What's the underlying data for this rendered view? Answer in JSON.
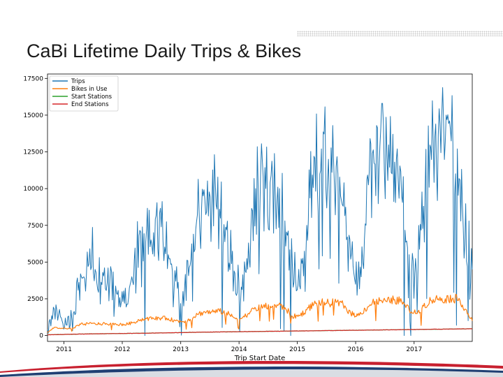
{
  "slide": {
    "title": "CaBi Lifetime Daily Trips & Bikes"
  },
  "colors": {
    "trips": "#1f77b4",
    "bikes": "#ff7f0e",
    "start": "#2ca02c",
    "end": "#d62728",
    "footer_navy": "#1f3f73",
    "footer_red": "#c8202f"
  },
  "chart_data": {
    "type": "line",
    "title": "",
    "xlabel": "Trip Start Date",
    "ylabel": "",
    "xlim": [
      "2010-09-20",
      "2017-12-31"
    ],
    "ylim": [
      -400,
      17800
    ],
    "x_ticks": [
      "2011",
      "2012",
      "2013",
      "2014",
      "2015",
      "2016",
      "2017"
    ],
    "y_ticks": [
      0,
      2500,
      5000,
      7500,
      10000,
      12500,
      15000,
      17500
    ],
    "y_tick_labels": [
      "0",
      "2500",
      "5000",
      "7500",
      "10000",
      "12500",
      "15000",
      "17500"
    ],
    "legend_position": "top-left",
    "grid": false,
    "series": [
      {
        "name": "Trips",
        "x": [
          "2010-09-20",
          "2010-11-01",
          "2010-12-15",
          "2011-01-20",
          "2011-03-01",
          "2011-04-15",
          "2011-06-01",
          "2011-07-15",
          "2011-09-01",
          "2011-10-15",
          "2011-12-01",
          "2012-01-15",
          "2012-03-01",
          "2012-04-15",
          "2012-06-01",
          "2012-07-15",
          "2012-09-01",
          "2012-10-15",
          "2012-12-01",
          "2013-01-15",
          "2013-03-01",
          "2013-04-15",
          "2013-06-01",
          "2013-07-15",
          "2013-09-01",
          "2013-10-15",
          "2013-12-01",
          "2014-01-15",
          "2014-03-01",
          "2014-04-15",
          "2014-06-01",
          "2014-07-15",
          "2014-09-01",
          "2014-10-15",
          "2014-12-01",
          "2015-01-15",
          "2015-03-01",
          "2015-04-15",
          "2015-06-01",
          "2015-07-15",
          "2015-09-01",
          "2015-10-15",
          "2015-12-01",
          "2016-01-15",
          "2016-03-01",
          "2016-04-15",
          "2016-06-01",
          "2016-07-15",
          "2016-09-01",
          "2016-10-15",
          "2016-12-01",
          "2017-01-15",
          "2017-03-01",
          "2017-04-15",
          "2017-06-01",
          "2017-07-15",
          "2017-09-01",
          "2017-10-15",
          "2017-12-31"
        ],
        "values": [
          400,
          1800,
          1200,
          700,
          1500,
          4200,
          4700,
          4500,
          4300,
          3700,
          2800,
          2200,
          4000,
          6800,
          7200,
          7000,
          7400,
          5500,
          3700,
          3000,
          4800,
          8200,
          9300,
          9000,
          8600,
          7200,
          4400,
          3300,
          6300,
          10000,
          10800,
          10400,
          10100,
          7800,
          4800,
          3400,
          7500,
          12200,
          12700,
          12000,
          11500,
          8800,
          5200,
          3800,
          7600,
          12400,
          12900,
          12300,
          11800,
          9500,
          5500,
          4300,
          8800,
          12800,
          13600,
          13200,
          13000,
          10600,
          4500
        ]
      },
      {
        "name": "Bikes in Use",
        "x": [
          "2010-09-20",
          "2010-11-01",
          "2010-12-15",
          "2011-01-20",
          "2011-03-01",
          "2011-04-15",
          "2011-06-01",
          "2011-07-15",
          "2011-09-01",
          "2011-10-15",
          "2011-12-01",
          "2012-01-15",
          "2012-03-01",
          "2012-04-15",
          "2012-06-01",
          "2012-07-15",
          "2012-09-01",
          "2012-10-15",
          "2012-12-01",
          "2013-01-15",
          "2013-03-01",
          "2013-04-15",
          "2013-06-01",
          "2013-07-15",
          "2013-09-01",
          "2013-10-15",
          "2013-12-01",
          "2014-01-15",
          "2014-03-01",
          "2014-04-15",
          "2014-06-01",
          "2014-07-15",
          "2014-09-01",
          "2014-10-15",
          "2014-12-01",
          "2015-01-15",
          "2015-03-01",
          "2015-04-15",
          "2015-06-01",
          "2015-07-15",
          "2015-09-01",
          "2015-10-15",
          "2015-12-01",
          "2016-01-15",
          "2016-03-01",
          "2016-04-15",
          "2016-06-01",
          "2016-07-15",
          "2016-09-01",
          "2016-10-15",
          "2016-12-01",
          "2017-01-15",
          "2017-03-01",
          "2017-04-15",
          "2017-06-01",
          "2017-07-15",
          "2017-09-01",
          "2017-10-15",
          "2017-12-31"
        ],
        "values": [
          200,
          550,
          500,
          450,
          500,
          750,
          800,
          800,
          800,
          780,
          750,
          750,
          850,
          1050,
          1150,
          1150,
          1200,
          1150,
          1000,
          950,
          1100,
          1450,
          1600,
          1600,
          1650,
          1550,
          1200,
          1150,
          1500,
          1850,
          1950,
          2000,
          2050,
          1900,
          1300,
          1350,
          1750,
          2150,
          2250,
          2200,
          2250,
          2100,
          1500,
          1350,
          1800,
          2250,
          2350,
          2300,
          2450,
          2300,
          1750,
          1500,
          2000,
          2400,
          2500,
          2500,
          2550,
          2400,
          1000
        ]
      },
      {
        "name": "Start Stations",
        "x": [
          "2010-09-20",
          "2011-06-01",
          "2012-06-01",
          "2013-06-01",
          "2014-06-01",
          "2015-06-01",
          "2016-06-01",
          "2017-06-01",
          "2017-12-31"
        ],
        "values": [
          50,
          110,
          160,
          230,
          280,
          330,
          380,
          430,
          460
        ]
      },
      {
        "name": "End Stations",
        "x": [
          "2010-09-20",
          "2011-06-01",
          "2012-06-01",
          "2013-06-01",
          "2014-06-01",
          "2015-06-01",
          "2016-06-01",
          "2017-06-01",
          "2017-12-31"
        ],
        "values": [
          50,
          110,
          160,
          230,
          280,
          330,
          380,
          430,
          460
        ]
      }
    ]
  }
}
